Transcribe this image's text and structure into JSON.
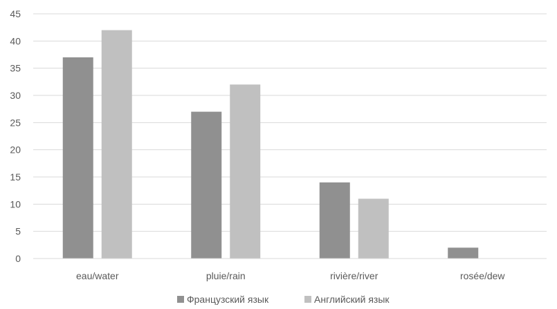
{
  "chart_data": {
    "type": "bar",
    "title": "",
    "xlabel": "",
    "ylabel": "",
    "categories": [
      "eau/water",
      "pluie/rain",
      "rivière/river",
      "rosée/dew"
    ],
    "series": [
      {
        "name": "Французский язык",
        "values": [
          37,
          27,
          14,
          2
        ],
        "color": "#909090"
      },
      {
        "name": "Английский язык",
        "values": [
          42,
          32,
          11,
          0
        ],
        "color": "#c0c0c0"
      }
    ],
    "ylim": [
      0,
      45
    ],
    "yticks": [
      0,
      5,
      10,
      15,
      20,
      25,
      30,
      35,
      40,
      45
    ],
    "grid": true,
    "legend_position": "bottom"
  }
}
